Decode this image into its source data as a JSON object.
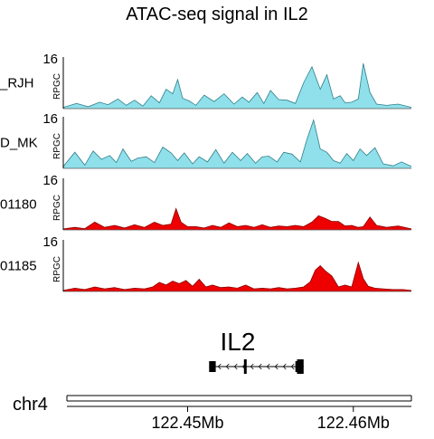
{
  "chart_data": {
    "type": "area",
    "title": "ATAC-seq signal in IL2",
    "ylabel": "RPGC",
    "ymax_label": "16",
    "ylim": [
      0,
      16
    ],
    "xlim": [
      122.4425,
      122.4635
    ],
    "x_ticks": [
      122.45,
      122.46
    ],
    "x_tick_labels": [
      "122.45Mb",
      "122.46Mb"
    ],
    "chromosome": "chr4",
    "tracks": [
      {
        "name": "_RJH",
        "color": "#8fe0ea",
        "line_color": "#2f7f8a",
        "x": [
          122.4425,
          122.4433,
          122.444,
          122.4447,
          122.4452,
          122.4458,
          122.4463,
          122.4468,
          122.4473,
          122.4478,
          122.4483,
          122.4487,
          122.4491,
          122.4494,
          122.4497,
          122.4501,
          122.4505,
          122.451,
          122.4516,
          122.4522,
          122.4528,
          122.4533,
          122.4537,
          122.4542,
          122.4546,
          122.455,
          122.4555,
          122.456,
          122.4565,
          122.457,
          122.4575,
          122.458,
          122.4584,
          122.4588,
          122.4592,
          122.4595,
          122.4599,
          122.4603,
          122.4606,
          122.461,
          122.4614,
          122.462,
          122.4627,
          122.4635
        ],
        "y": [
          0.4,
          1.6,
          0.6,
          2.0,
          1.2,
          3.0,
          1.0,
          2.6,
          0.8,
          4.0,
          1.8,
          6.0,
          4.6,
          9.0,
          3.2,
          2.4,
          1.0,
          4.2,
          2.2,
          4.6,
          1.4,
          3.6,
          2.0,
          5.0,
          1.6,
          5.6,
          2.8,
          2.6,
          1.6,
          8.0,
          13.0,
          6.0,
          10.5,
          3.0,
          4.0,
          1.8,
          2.0,
          3.0,
          14.0,
          5.0,
          1.4,
          1.0,
          1.4,
          0.4
        ]
      },
      {
        "name": "D_MK",
        "color": "#8fe0ea",
        "line_color": "#2f7f8a",
        "x": [
          122.4425,
          122.4432,
          122.4438,
          122.4443,
          122.4448,
          122.4453,
          122.4457,
          122.4461,
          122.4466,
          122.447,
          122.4475,
          122.448,
          122.4485,
          122.449,
          122.4494,
          122.4498,
          122.4503,
          122.4507,
          122.4512,
          122.4517,
          122.4522,
          122.4527,
          122.4532,
          122.4536,
          122.4541,
          122.4545,
          122.4549,
          122.4554,
          122.4558,
          122.4563,
          122.4568,
          122.4572,
          122.4576,
          122.458,
          122.4584,
          122.4588,
          122.4592,
          122.4596,
          122.46,
          122.4604,
          122.4608,
          122.4613,
          122.4618,
          122.4624,
          122.4629,
          122.4635
        ],
        "y": [
          0.6,
          5.0,
          1.0,
          5.4,
          2.8,
          4.0,
          1.8,
          6.0,
          2.2,
          3.2,
          3.6,
          1.8,
          6.6,
          4.8,
          2.4,
          4.8,
          1.4,
          3.6,
          2.0,
          5.8,
          1.6,
          5.0,
          2.4,
          4.6,
          1.6,
          3.6,
          3.8,
          2.0,
          5.0,
          4.4,
          2.0,
          9.0,
          15.0,
          6.0,
          5.0,
          2.4,
          1.6,
          4.6,
          2.4,
          6.0,
          4.0,
          6.4,
          1.4,
          0.8,
          2.0,
          0.6
        ]
      },
      {
        "name": "01180",
        "color": "#ee0000",
        "line_color": "#8a0000",
        "x": [
          122.4425,
          122.4432,
          122.4438,
          122.4444,
          122.445,
          122.4456,
          122.4462,
          122.4468,
          122.4474,
          122.448,
          122.4485,
          122.449,
          122.4493,
          122.4496,
          122.45,
          122.4505,
          122.451,
          122.4515,
          122.452,
          122.4525,
          122.453,
          122.4535,
          122.454,
          122.4545,
          122.455,
          122.4555,
          122.456,
          122.4565,
          122.457,
          122.4575,
          122.4579,
          122.4583,
          122.4587,
          122.4591,
          122.4595,
          122.4599,
          122.4603,
          122.4606,
          122.461,
          122.4614,
          122.462,
          122.4627,
          122.4635
        ],
        "y": [
          0.3,
          0.8,
          0.4,
          2.4,
          0.8,
          1.4,
          0.6,
          1.6,
          0.8,
          2.4,
          1.4,
          1.8,
          6.6,
          2.4,
          1.0,
          1.0,
          0.6,
          1.4,
          0.8,
          2.2,
          1.0,
          1.4,
          0.8,
          1.6,
          0.8,
          1.2,
          1.0,
          1.4,
          1.0,
          2.4,
          4.4,
          3.6,
          2.6,
          2.6,
          1.2,
          1.4,
          0.8,
          1.0,
          4.0,
          1.4,
          0.8,
          1.2,
          0.3
        ]
      },
      {
        "name": "01185",
        "color": "#ee0000",
        "line_color": "#8a0000",
        "x": [
          122.4425,
          122.4432,
          122.4438,
          122.4444,
          122.445,
          122.4456,
          122.4462,
          122.4468,
          122.4474,
          122.4479,
          122.4483,
          122.4487,
          122.4491,
          122.4495,
          122.4499,
          122.4503,
          122.4507,
          122.4511,
          122.4515,
          122.452,
          122.4525,
          122.453,
          122.4535,
          122.454,
          122.4545,
          122.455,
          122.4555,
          122.456,
          122.4565,
          122.457,
          122.4574,
          122.4577,
          122.458,
          122.4583,
          122.4587,
          122.4591,
          122.4595,
          122.4599,
          122.4603,
          122.4606,
          122.4609,
          122.4613,
          122.4618,
          122.4624,
          122.463,
          122.4635
        ],
        "y": [
          0.3,
          1.0,
          0.6,
          1.4,
          0.8,
          1.2,
          0.6,
          1.0,
          0.8,
          1.4,
          2.8,
          2.0,
          3.2,
          2.4,
          3.4,
          1.6,
          3.8,
          1.4,
          2.0,
          1.2,
          1.4,
          1.0,
          2.0,
          0.8,
          1.0,
          0.8,
          1.2,
          0.8,
          1.0,
          1.4,
          3.0,
          6.6,
          8.0,
          6.4,
          4.8,
          1.4,
          2.0,
          1.4,
          9.0,
          4.0,
          1.6,
          1.0,
          0.8,
          0.6,
          0.6,
          0.3
        ]
      }
    ],
    "gene": {
      "name": "IL2",
      "strand": "-",
      "start": 122.4513,
      "end": 122.457,
      "exons": [
        [
          122.4513,
          122.4517
        ],
        [
          122.4534,
          122.4535
        ],
        [
          122.4565,
          122.4566
        ],
        [
          122.4566,
          122.457
        ]
      ]
    }
  }
}
